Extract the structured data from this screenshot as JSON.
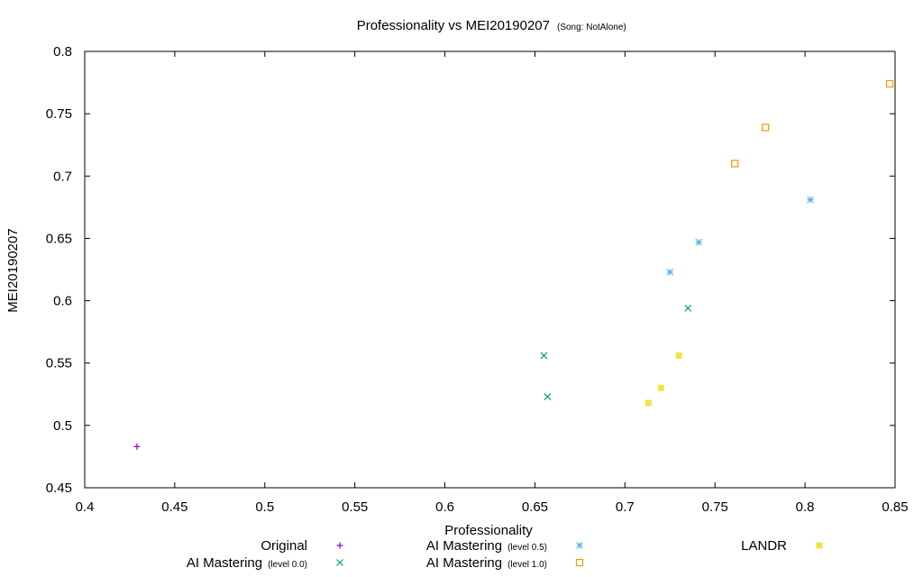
{
  "chart_data": {
    "type": "scatter",
    "title": "Professionality vs MEI20190207",
    "subtitle": "(Song: NotAlone)",
    "xlabel": "Professionality",
    "ylabel": "MEI20190207",
    "xlim": [
      0.4,
      0.85
    ],
    "ylim": [
      0.45,
      0.8
    ],
    "xticks": [
      0.4,
      0.45,
      0.5,
      0.55,
      0.6,
      0.65,
      0.7,
      0.75,
      0.8,
      0.85
    ],
    "yticks": [
      0.45,
      0.5,
      0.55,
      0.6,
      0.65,
      0.7,
      0.75,
      0.8
    ],
    "xtick_labels": [
      "0.4",
      "0.45",
      "0.5",
      "0.55",
      "0.6",
      "0.65",
      "0.7",
      "0.75",
      "0.8",
      "0.85"
    ],
    "ytick_labels": [
      "0.45",
      "0.5",
      "0.55",
      "0.6",
      "0.65",
      "0.7",
      "0.75",
      "0.8"
    ],
    "grid": false,
    "legend_position": "bottom",
    "series": [
      {
        "name": "Original",
        "level": "",
        "color": "#9400d3",
        "marker": "plus",
        "points": [
          [
            0.429,
            0.483
          ]
        ]
      },
      {
        "name": "AI Mastering",
        "level": "(level 0.0)",
        "color": "#009e73",
        "marker": "cross",
        "points": [
          [
            0.655,
            0.556
          ],
          [
            0.657,
            0.523
          ],
          [
            0.735,
            0.594
          ]
        ]
      },
      {
        "name": "AI Mastering",
        "level": "(level 0.5)",
        "color": "#56b4e9",
        "marker": "star",
        "points": [
          [
            0.725,
            0.623
          ],
          [
            0.741,
            0.647
          ],
          [
            0.803,
            0.681
          ]
        ]
      },
      {
        "name": "AI Mastering",
        "level": "(level 1.0)",
        "color": "#e69f00",
        "marker": "open-square",
        "points": [
          [
            0.761,
            0.71
          ],
          [
            0.778,
            0.739
          ],
          [
            0.847,
            0.774
          ]
        ]
      },
      {
        "name": "LANDR",
        "level": "",
        "color": "#f0e442",
        "marker": "filled-square",
        "points": [
          [
            0.713,
            0.518
          ],
          [
            0.72,
            0.53
          ],
          [
            0.73,
            0.556
          ]
        ]
      }
    ]
  }
}
